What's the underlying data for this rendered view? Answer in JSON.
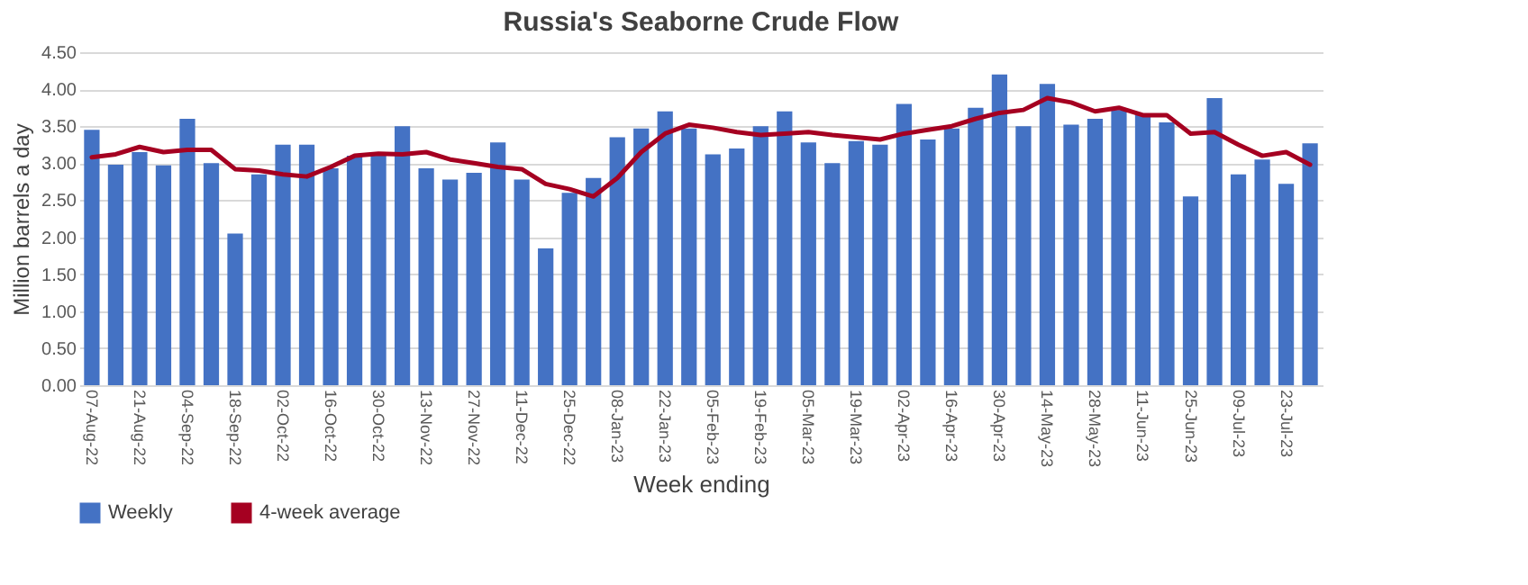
{
  "chart_data": {
    "title": "Russia's Seaborne Crude Flow",
    "xlabel": "Week ending",
    "ylabel": "Million barrels a day",
    "categories": [
      "07-Aug-22",
      null,
      "21-Aug-22",
      null,
      "04-Sep-22",
      null,
      "18-Sep-22",
      null,
      "02-Oct-22",
      null,
      "16-Oct-22",
      null,
      "30-Oct-22",
      null,
      "13-Nov-22",
      null,
      "27-Nov-22",
      null,
      "11-Dec-22",
      null,
      "25-Dec-22",
      null,
      "08-Jan-23",
      null,
      "22-Jan-23",
      null,
      "05-Feb-23",
      null,
      "19-Feb-23",
      null,
      "05-Mar-23",
      null,
      "19-Mar-23",
      null,
      "02-Apr-23",
      null,
      "16-Apr-23",
      null,
      "30-Apr-23",
      null,
      "14-May-23",
      null,
      "28-May-23",
      null,
      "11-Jun-23",
      null,
      "25-Jun-23",
      null,
      "09-Jul-23",
      null,
      "23-Jul-23",
      null
    ],
    "series": [
      {
        "name": "Weekly",
        "color": "#4472c4",
        "values": [
          3.45,
          2.98,
          3.15,
          2.97,
          3.6,
          3.0,
          2.05,
          2.85,
          3.25,
          3.25,
          2.93,
          3.1,
          3.1,
          3.5,
          2.93,
          2.78,
          2.87,
          3.28,
          2.78,
          1.85,
          2.6,
          2.8,
          3.35,
          3.47,
          3.7,
          3.47,
          3.12,
          3.2,
          3.5,
          3.7,
          3.28,
          3.0,
          3.3,
          3.25,
          3.8,
          3.32,
          3.47,
          3.75,
          4.2,
          3.5,
          4.07,
          3.52,
          3.6,
          3.72,
          3.65,
          3.55,
          2.55,
          3.88,
          2.85,
          3.05,
          2.72,
          3.27
        ]
      },
      {
        "name": "4-week average",
        "type": "line",
        "color": "#a50021",
        "values": [
          3.08,
          3.12,
          3.22,
          3.15,
          3.18,
          3.18,
          2.92,
          2.9,
          2.85,
          2.82,
          2.95,
          3.1,
          3.13,
          3.12,
          3.15,
          3.05,
          3.0,
          2.95,
          2.92,
          2.72,
          2.65,
          2.55,
          2.8,
          3.15,
          3.4,
          3.52,
          3.48,
          3.42,
          3.38,
          3.4,
          3.42,
          3.38,
          3.35,
          3.32,
          3.4,
          3.45,
          3.5,
          3.6,
          3.68,
          3.72,
          3.88,
          3.82,
          3.7,
          3.75,
          3.65,
          3.65,
          3.4,
          3.42,
          3.25,
          3.1,
          3.15,
          2.98
        ]
      }
    ],
    "ylim": [
      0,
      4.5
    ],
    "yticks": [
      {
        "value": 0,
        "label": "0.00"
      },
      {
        "value": 0.5,
        "label": "0.50"
      },
      {
        "value": 1,
        "label": "1.00"
      },
      {
        "value": 1.5,
        "label": "1.50"
      },
      {
        "value": 2,
        "label": "2.00"
      },
      {
        "value": 2.5,
        "label": "2.50"
      },
      {
        "value": 3,
        "label": "3.00"
      },
      {
        "value": 3.5,
        "label": "3.50"
      },
      {
        "value": 4,
        "label": "4.00"
      },
      {
        "value": 4.5,
        "label": "4.50"
      }
    ],
    "type": "bar",
    "grid": "y",
    "legend": "bottom left",
    "line_style": "solid",
    "marker": "none"
  }
}
